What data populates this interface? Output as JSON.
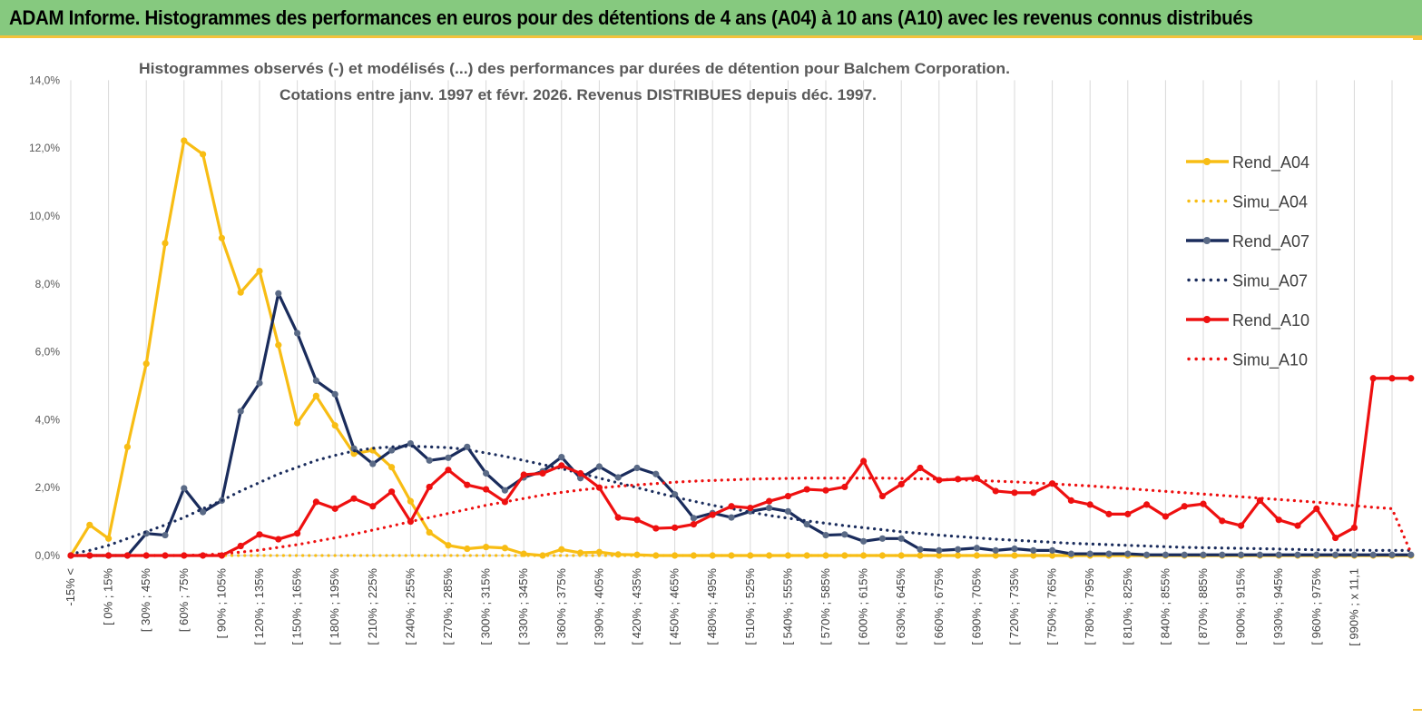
{
  "header": {
    "title": "ADAM Informe. Histogrammes des performances en euros pour des détentions de 4 ans (A04) à 10 ans (A10) avec les revenus connus distribués"
  },
  "colors": {
    "banner": "#86c97f",
    "banner_border": "#f3c23b",
    "a04": "#f8bd14",
    "a07": "#1a2c5c",
    "a10": "#ee1010",
    "grid": "#d9d9d9"
  },
  "chart_data": {
    "type": "line",
    "title_line1": "Histogrammes observés (-) et modélisés (...) des performances par durées de détention pour Balchem Corporation.",
    "title_line2": "Cotations entre janv. 1997 et févr. 2026. Revenus DISTRIBUES depuis déc. 1997.",
    "xlabel": "",
    "ylabel": "",
    "ylim": [
      0,
      14
    ],
    "y_ticks": [
      "0,0%",
      "2,0%",
      "4,0%",
      "6,0%",
      "8,0%",
      "10,0%",
      "12,0%",
      "14,0%"
    ],
    "grid": "vertical",
    "legend_position": "right",
    "x_labels_shown": [
      "-15% <",
      "[ 0% ; 15%",
      "[ 30% ; 45%",
      "[ 60% ; 75%",
      "[ 90% ; 105%",
      "[ 120% ; 135%",
      "[ 150% ; 165%",
      "[ 180% ; 195%",
      "[ 210% ; 225%",
      "[ 240% ; 255%",
      "[ 270% ; 285%",
      "[ 300% ; 315%",
      "[ 330% ; 345%",
      "[ 360% ; 375%",
      "[ 390% ; 405%",
      "[ 420% ; 435%",
      "[ 450% ; 465%",
      "[ 480% ; 495%",
      "[ 510% ; 525%",
      "[ 540% ; 555%",
      "[ 570% ; 585%",
      "[ 600% ; 615%",
      "[ 630% ; 645%",
      "[ 660% ; 675%",
      "[ 690% ; 705%",
      "[ 720% ; 735%",
      "[ 750% ; 765%",
      "[ 780% ; 795%",
      "[ 810% ; 825%",
      "[ 840% ; 855%",
      "[ 870% ; 885%",
      "[ 900% ; 915%",
      "[ 930% ; 945%",
      "[ 960% ; 975%",
      "[ 990% ; x 11,1"
    ],
    "x_count": 72,
    "series": [
      {
        "name": "Rend_A04",
        "style": "solid",
        "color": "#f8bd14",
        "values": [
          0,
          0.9,
          0.5,
          3.2,
          5.65,
          9.2,
          12.22,
          11.82,
          9.35,
          7.75,
          8.38,
          6.2,
          3.9,
          4.7,
          3.83,
          3.0,
          3.1,
          2.6,
          1.6,
          0.68,
          0.3,
          0.2,
          0.25,
          0.22,
          0.05,
          0.0,
          0.18,
          0.08,
          0.1,
          0.03,
          0.02,
          0,
          0,
          0,
          0,
          0,
          0,
          0,
          0,
          0,
          0,
          0,
          0,
          0,
          0,
          0,
          0,
          0,
          0,
          0,
          0,
          0,
          0,
          0,
          0,
          0,
          0,
          0,
          0,
          0,
          0,
          0,
          0,
          0,
          0,
          0,
          0,
          0,
          0,
          0,
          0,
          0
        ]
      },
      {
        "name": "Simu_A04",
        "style": "dotted",
        "color": "#f8bd14",
        "values": [
          0,
          0,
          0,
          0,
          0,
          0,
          0,
          0,
          0,
          0,
          0,
          0,
          0,
          0,
          0,
          0,
          0,
          0,
          0,
          0,
          0,
          0,
          0,
          0,
          0,
          0,
          0,
          0,
          0,
          0,
          0,
          0,
          0,
          0,
          0,
          0,
          0,
          0,
          0,
          0,
          0,
          0,
          0,
          0,
          0,
          0,
          0,
          0,
          0,
          0,
          0,
          0,
          0,
          0,
          0,
          0,
          0,
          0,
          0,
          0,
          0,
          0,
          0,
          0,
          0,
          0,
          0,
          0,
          0,
          0,
          0,
          0
        ]
      },
      {
        "name": "Rend_A07",
        "style": "solid",
        "color": "#1a2c5c",
        "values": [
          0,
          0,
          0,
          0,
          0.65,
          0.6,
          1.98,
          1.28,
          1.62,
          4.25,
          5.08,
          7.72,
          6.55,
          5.15,
          4.75,
          3.15,
          2.7,
          3.1,
          3.3,
          2.8,
          2.88,
          3.2,
          2.42,
          1.92,
          2.3,
          2.48,
          2.9,
          2.28,
          2.62,
          2.3,
          2.58,
          2.4,
          1.8,
          1.1,
          1.25,
          1.12,
          1.3,
          1.4,
          1.3,
          0.92,
          0.6,
          0.62,
          0.42,
          0.5,
          0.5,
          0.18,
          0.15,
          0.18,
          0.22,
          0.15,
          0.2,
          0.15,
          0.15,
          0.05,
          0.05,
          0.05,
          0.05,
          0.02,
          0.02,
          0.02,
          0.02,
          0.02,
          0.02,
          0.02,
          0.02,
          0.02,
          0.02,
          0.02,
          0.02,
          0.02,
          0.02,
          0.02
        ]
      },
      {
        "name": "Simu_A07",
        "style": "dotted",
        "color": "#1a2c5c",
        "values": [
          0.05,
          0.15,
          0.3,
          0.5,
          0.7,
          0.9,
          1.12,
          1.38,
          1.62,
          1.9,
          2.15,
          2.4,
          2.6,
          2.8,
          2.95,
          3.08,
          3.16,
          3.2,
          3.22,
          3.2,
          3.18,
          3.12,
          3.02,
          2.92,
          2.8,
          2.68,
          2.56,
          2.42,
          2.28,
          2.14,
          2.0,
          1.86,
          1.72,
          1.6,
          1.48,
          1.38,
          1.28,
          1.18,
          1.1,
          1.02,
          0.95,
          0.88,
          0.82,
          0.76,
          0.7,
          0.65,
          0.6,
          0.56,
          0.52,
          0.48,
          0.45,
          0.42,
          0.39,
          0.36,
          0.34,
          0.32,
          0.3,
          0.28,
          0.26,
          0.24,
          0.23,
          0.22,
          0.21,
          0.2,
          0.19,
          0.18,
          0.17,
          0.16,
          0.16,
          0.15,
          0.15,
          0.15
        ]
      },
      {
        "name": "Rend_A10",
        "style": "solid",
        "color": "#ee1010",
        "values": [
          0,
          0,
          0,
          0,
          0,
          0,
          0,
          0,
          0,
          0.28,
          0.62,
          0.48,
          0.65,
          1.58,
          1.38,
          1.68,
          1.45,
          1.88,
          1.0,
          2.02,
          2.52,
          2.08,
          1.95,
          1.58,
          2.38,
          2.42,
          2.65,
          2.42,
          2.0,
          1.12,
          1.05,
          0.8,
          0.82,
          0.92,
          1.2,
          1.45,
          1.4,
          1.6,
          1.75,
          1.95,
          1.92,
          2.02,
          2.78,
          1.75,
          2.1,
          2.58,
          2.22,
          2.25,
          2.28,
          1.9,
          1.85,
          1.85,
          2.12,
          1.62,
          1.5,
          1.22,
          1.22,
          1.5,
          1.15,
          1.45,
          1.52,
          1.02,
          0.88,
          1.62,
          1.05,
          0.88,
          1.38,
          0.52,
          0.82,
          5.22,
          5.22,
          5.22
        ]
      },
      {
        "name": "Simu_A10",
        "style": "dotted",
        "color": "#ee1010",
        "values": [
          0,
          0,
          0,
          0,
          0,
          0,
          0,
          0.02,
          0.05,
          0.1,
          0.16,
          0.24,
          0.32,
          0.42,
          0.52,
          0.63,
          0.75,
          0.87,
          1.0,
          1.12,
          1.24,
          1.36,
          1.48,
          1.58,
          1.68,
          1.78,
          1.86,
          1.93,
          1.99,
          2.04,
          2.08,
          2.12,
          2.16,
          2.19,
          2.21,
          2.23,
          2.25,
          2.26,
          2.27,
          2.28,
          2.28,
          2.28,
          2.28,
          2.28,
          2.27,
          2.26,
          2.25,
          2.23,
          2.21,
          2.19,
          2.17,
          2.14,
          2.11,
          2.08,
          2.05,
          2.01,
          1.97,
          1.93,
          1.89,
          1.85,
          1.81,
          1.77,
          1.73,
          1.69,
          1.65,
          1.61,
          1.57,
          1.52,
          1.47,
          1.42,
          1.38,
          0.08
        ]
      }
    ]
  }
}
